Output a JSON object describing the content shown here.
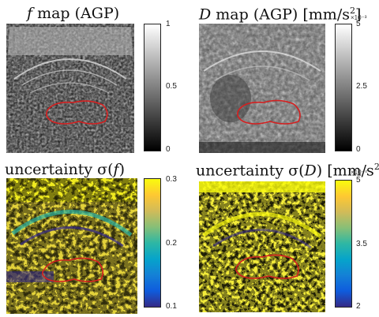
{
  "panels": [
    {
      "id": "f-map",
      "title_main": "f",
      "title_rest": " map (AGP)",
      "unit": "",
      "colormap": "gray",
      "colorbar": {
        "ticks": [
          "1",
          "0.5",
          "0"
        ],
        "exponent": ""
      }
    },
    {
      "id": "D-map",
      "title_main": "D",
      "title_rest": " map (AGP) [mm/s",
      "unit_sup": "2",
      "unit_close": "]",
      "colormap": "gray",
      "colorbar": {
        "ticks": [
          "5",
          "2.5",
          "0"
        ],
        "exponent": "×10⁻³"
      }
    },
    {
      "id": "sigma-f",
      "title_main": "uncertainty σ(",
      "title_var": "f",
      "title_rest": ")",
      "colormap": "parula",
      "colorbar": {
        "ticks": [
          "0.3",
          "0.2",
          "0.1"
        ],
        "exponent": ""
      }
    },
    {
      "id": "sigma-D",
      "title_main": "uncertainty σ(",
      "title_var": "D",
      "title_rest": ") [mm/s",
      "unit_sup": "2",
      "unit_close": "]",
      "colormap": "parula",
      "colorbar": {
        "ticks": [
          "5",
          "3.5",
          "2"
        ],
        "exponent": "×10⁻⁴"
      }
    }
  ],
  "colors": {
    "roi_outline": "#d42020",
    "gray_dark": "#111111",
    "gray_light": "#f2f2f2",
    "parula": [
      "#352a87",
      "#0f5cdd",
      "#1481d6",
      "#06a4ca",
      "#2eb7a4",
      "#87bf77",
      "#d1bb59",
      "#fec832",
      "#f9fb0e"
    ]
  }
}
